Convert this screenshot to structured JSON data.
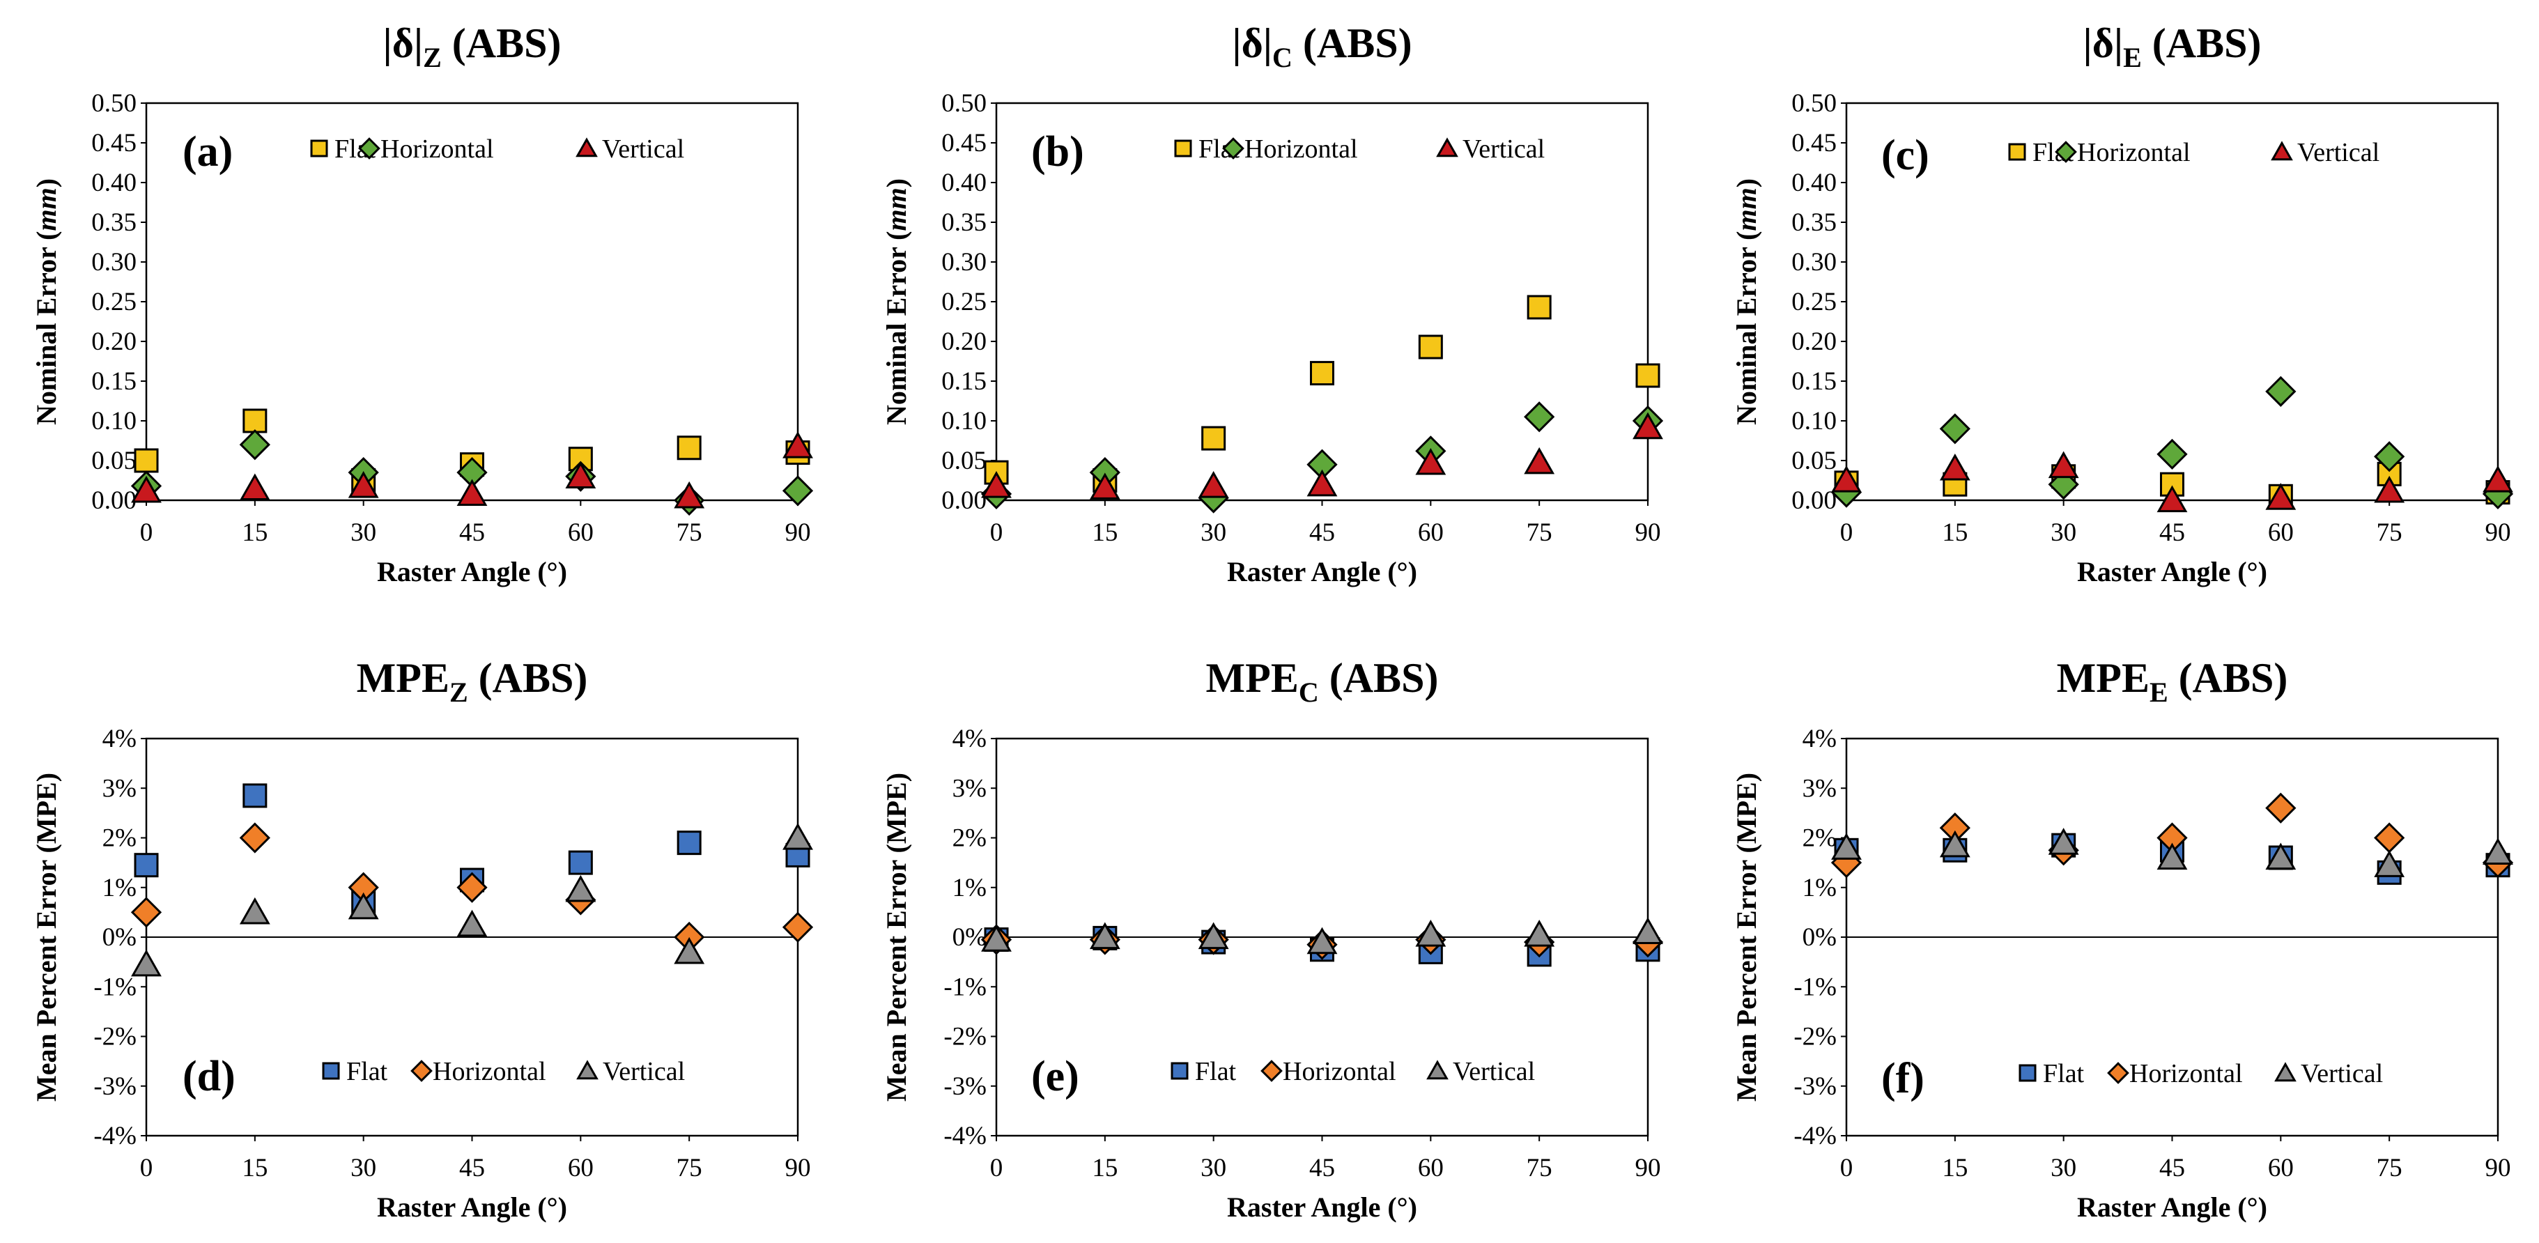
{
  "colors": {
    "flat_top": "#F5C518",
    "horizontal_top": "#5FA83A",
    "vertical_top": "#C8191E",
    "flat_bottom": "#3F73C0",
    "horizontal_bottom": "#F07F28",
    "vertical_bottom": "#8C8C8C",
    "marker_edge": "#000000",
    "axis": "#000000"
  },
  "chart_data": [
    {
      "panel": "(a)",
      "type": "scatter",
      "title_main": "|δ|",
      "title_sub": "Z",
      "title_suffix": "  (ABS)",
      "xlabel": "Raster Angle (°)",
      "ylabel": "Nominal  Error (mm)",
      "ylabel_plain": "Nominal  Error (",
      "ylabel_unit": "mm",
      "ylabel_close": ")",
      "x": [
        0,
        15,
        30,
        45,
        60,
        75,
        90
      ],
      "xticks": [
        "0",
        "15",
        "30",
        "45",
        "60",
        "75",
        "90"
      ],
      "ylim": [
        0,
        0.5
      ],
      "yticks": [
        "0.00",
        "0.05",
        "0.10",
        "0.15",
        "0.20",
        "0.25",
        "0.30",
        "0.35",
        "0.40",
        "0.45",
        "0.50"
      ],
      "legend": [
        "Flat",
        "Horizontal",
        "Vertical"
      ],
      "legend_position": "top",
      "series": [
        {
          "name": "Flat",
          "marker": "square",
          "values": [
            0.05,
            0.1,
            0.025,
            0.045,
            0.052,
            0.066,
            0.06
          ]
        },
        {
          "name": "Horizontal",
          "marker": "diamond",
          "values": [
            0.018,
            0.07,
            0.035,
            0.035,
            0.03,
            0.0,
            0.012
          ]
        },
        {
          "name": "Vertical",
          "marker": "triangle",
          "values": [
            0.012,
            0.015,
            0.018,
            0.008,
            0.03,
            0.005,
            0.068
          ]
        }
      ]
    },
    {
      "panel": "(b)",
      "type": "scatter",
      "title_main": "|δ|",
      "title_sub": "C",
      "title_suffix": "  (ABS)",
      "xlabel": "Raster Angle (°)",
      "ylabel": "Nominal Error (mm)",
      "ylabel_plain": "Nominal Error (",
      "ylabel_unit": "mm",
      "ylabel_close": ")",
      "x": [
        0,
        15,
        30,
        45,
        60,
        75,
        90
      ],
      "xticks": [
        "0",
        "15",
        "30",
        "45",
        "60",
        "75",
        "90"
      ],
      "ylim": [
        0,
        0.5
      ],
      "yticks": [
        "0.00",
        "0.05",
        "0.10",
        "0.15",
        "0.20",
        "0.25",
        "0.30",
        "0.35",
        "0.40",
        "0.45",
        "0.50"
      ],
      "legend": [
        "Flat",
        "Horizontal",
        "Vertical"
      ],
      "legend_position": "top",
      "series": [
        {
          "name": "Flat",
          "marker": "square",
          "values": [
            0.035,
            0.025,
            0.078,
            0.16,
            0.193,
            0.243,
            0.157
          ]
        },
        {
          "name": "Horizontal",
          "marker": "diamond",
          "values": [
            0.008,
            0.035,
            0.003,
            0.045,
            0.062,
            0.105,
            0.1
          ]
        },
        {
          "name": "Vertical",
          "marker": "triangle",
          "values": [
            0.018,
            0.016,
            0.018,
            0.02,
            0.047,
            0.048,
            0.092
          ]
        }
      ]
    },
    {
      "panel": "(c)",
      "type": "scatter",
      "title_main": "|δ|",
      "title_sub": "E",
      "title_suffix": "  (ABS)",
      "xlabel": "Raster Angle (°)",
      "ylabel": "Nominal Error (mm)",
      "ylabel_plain": "Nominal Error (",
      "ylabel_unit": "mm",
      "ylabel_close": ")",
      "x": [
        0,
        15,
        30,
        45,
        60,
        75,
        90
      ],
      "xticks": [
        "0",
        "15",
        "30",
        "45",
        "60",
        "75",
        "90"
      ],
      "ylim": [
        0,
        0.5
      ],
      "yticks": [
        "0.00",
        "0.05",
        "0.10",
        "0.15",
        "0.20",
        "0.25",
        "0.30",
        "0.35",
        "0.40",
        "0.45",
        "0.50"
      ],
      "legend": [
        "Flat",
        "Horizontal",
        "Vertical"
      ],
      "legend_position": "top",
      "series": [
        {
          "name": "Flat",
          "marker": "square",
          "values": [
            0.022,
            0.02,
            0.03,
            0.02,
            0.005,
            0.033,
            0.01
          ]
        },
        {
          "name": "Horizontal",
          "marker": "diamond",
          "values": [
            0.01,
            0.09,
            0.02,
            0.058,
            0.137,
            0.055,
            0.008
          ]
        },
        {
          "name": "Vertical",
          "marker": "triangle",
          "values": [
            0.025,
            0.04,
            0.043,
            0.0,
            0.003,
            0.012,
            0.025
          ]
        }
      ]
    },
    {
      "panel": "(d)",
      "type": "scatter",
      "title_main": "MPE",
      "title_sub": "Z",
      "title_suffix": " (ABS)",
      "xlabel": "Raster Angle (°)",
      "ylabel": "Mean Percent Error (MPE)",
      "ylabel_plain": "Mean Percent Error (MPE)",
      "ylabel_unit": "",
      "ylabel_close": "",
      "x": [
        0,
        15,
        30,
        45,
        60,
        75,
        90
      ],
      "xticks": [
        "0",
        "15",
        "30",
        "45",
        "60",
        "75",
        "90"
      ],
      "ylim": [
        -4,
        4
      ],
      "yticks": [
        "-4%",
        "-3%",
        "-2%",
        "-1%",
        "0%",
        "1%",
        "2%",
        "3%",
        "4%"
      ],
      "legend": [
        "Flat",
        "Horizontal",
        "Vertical"
      ],
      "legend_position": "bottom",
      "series": [
        {
          "name": "Flat",
          "marker": "square",
          "values": [
            1.45,
            2.85,
            0.7,
            1.15,
            1.5,
            1.9,
            1.65
          ]
        },
        {
          "name": "Horizontal",
          "marker": "diamond",
          "values": [
            0.5,
            2.0,
            1.0,
            1.0,
            0.75,
            0.0,
            0.2
          ]
        },
        {
          "name": "Vertical",
          "marker": "triangle",
          "values": [
            -0.55,
            0.5,
            0.6,
            0.25,
            0.95,
            -0.3,
            2.0
          ]
        }
      ]
    },
    {
      "panel": "(e)",
      "type": "scatter",
      "title_main": "MPE",
      "title_sub": "C",
      "title_suffix": " (ABS)",
      "xlabel": "Raster Angle (°)",
      "ylabel": "Mean Percent Error (MPE)",
      "ylabel_plain": "Mean Percent Error (MPE)",
      "ylabel_unit": "",
      "ylabel_close": "",
      "x": [
        0,
        15,
        30,
        45,
        60,
        75,
        90
      ],
      "xticks": [
        "0",
        "15",
        "30",
        "45",
        "60",
        "75",
        "90"
      ],
      "ylim": [
        -4,
        4
      ],
      "yticks": [
        "-4%",
        "-3%",
        "-2%",
        "-1%",
        "0%",
        "1%",
        "2%",
        "3%",
        "4%"
      ],
      "legend": [
        "Flat",
        "Horizontal",
        "Vertical"
      ],
      "legend_position": "bottom",
      "series": [
        {
          "name": "Flat",
          "marker": "square",
          "values": [
            -0.05,
            -0.02,
            -0.1,
            -0.25,
            -0.3,
            -0.35,
            -0.25
          ]
        },
        {
          "name": "Horizontal",
          "marker": "diamond",
          "values": [
            -0.05,
            -0.05,
            -0.05,
            -0.15,
            -0.05,
            -0.1,
            -0.1
          ]
        },
        {
          "name": "Vertical",
          "marker": "triangle",
          "values": [
            -0.05,
            0.0,
            0.0,
            -0.1,
            0.05,
            0.05,
            0.1
          ]
        }
      ]
    },
    {
      "panel": "(f)",
      "type": "scatter",
      "title_main": "MPE",
      "title_sub": "E",
      "title_suffix": " (ABS)",
      "xlabel": "Raster Angle (°)",
      "ylabel": "Mean Percent Error (MPE)",
      "ylabel_plain": "Mean Percent Error (MPE)",
      "ylabel_unit": "",
      "ylabel_close": "",
      "x": [
        0,
        15,
        30,
        45,
        60,
        75,
        90
      ],
      "xticks": [
        "0",
        "15",
        "30",
        "45",
        "60",
        "75",
        "90"
      ],
      "ylim": [
        -4,
        4
      ],
      "yticks": [
        "-4%",
        "-3%",
        "-2%",
        "-1%",
        "0%",
        "1%",
        "2%",
        "3%",
        "4%"
      ],
      "legend": [
        "Flat",
        "Horizontal",
        "Vertical"
      ],
      "legend_position": "bottom",
      "series": [
        {
          "name": "Flat",
          "marker": "square",
          "values": [
            1.75,
            1.75,
            1.85,
            1.75,
            1.6,
            1.3,
            1.45
          ]
        },
        {
          "name": "Horizontal",
          "marker": "diamond",
          "values": [
            1.5,
            2.2,
            1.75,
            2.0,
            2.6,
            2.0,
            1.5
          ]
        },
        {
          "name": "Vertical",
          "marker": "triangle",
          "values": [
            1.8,
            1.85,
            1.9,
            1.6,
            1.6,
            1.45,
            1.7
          ]
        }
      ]
    }
  ]
}
